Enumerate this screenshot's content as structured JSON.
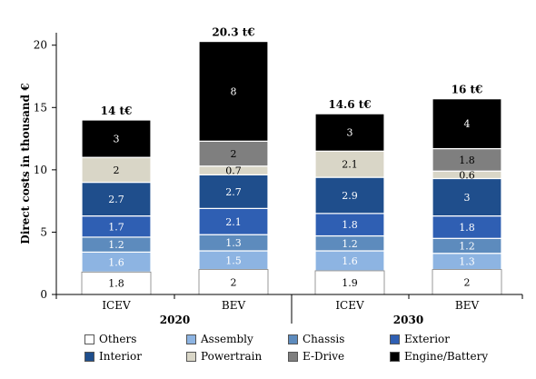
{
  "chart_data": {
    "type": "bar",
    "stacked": true,
    "categories": [
      "ICEV",
      "BEV",
      "ICEV",
      "BEV"
    ],
    "groups": [
      {
        "label": "2020",
        "categories": [
          0,
          1
        ]
      },
      {
        "label": "2030",
        "categories": [
          2,
          3
        ]
      }
    ],
    "ylabel": "Direct costs in thousand €",
    "ylim": [
      0,
      21
    ],
    "yticks": [
      0,
      5,
      10,
      15,
      20
    ],
    "grid": false,
    "legend_position": "bottom",
    "totals": [
      "14 t€",
      "20.3 t€",
      "14.6 t€",
      "16 t€"
    ],
    "series": [
      {
        "name": "Others",
        "color": "#ffffff",
        "label_color": "#000000",
        "values": [
          1.8,
          2,
          1.9,
          2
        ]
      },
      {
        "name": "Assembly",
        "color": "#8db4e2",
        "label_color": "#ffffff",
        "values": [
          1.6,
          1.5,
          1.6,
          1.3
        ]
      },
      {
        "name": "Chassis",
        "color": "#5d8bbd",
        "label_color": "#ffffff",
        "values": [
          1.2,
          1.3,
          1.2,
          1.2
        ]
      },
      {
        "name": "Exterior",
        "color": "#2f5fb3",
        "label_color": "#ffffff",
        "values": [
          1.7,
          2.1,
          1.8,
          1.8
        ]
      },
      {
        "name": "Interior",
        "color": "#1f4e8c",
        "label_color": "#ffffff",
        "values": [
          2.7,
          2.7,
          2.9,
          3
        ]
      },
      {
        "name": "Powertrain",
        "color": "#d9d6c7",
        "label_color": "#000000",
        "values": [
          2,
          0.7,
          2.1,
          0.6
        ]
      },
      {
        "name": "E-Drive",
        "color": "#7f7f7f",
        "label_color": "#000000",
        "values": [
          0,
          2,
          0,
          1.8
        ]
      },
      {
        "name": "Engine/Battery",
        "color": "#000000",
        "label_color": "#ffffff",
        "values": [
          3,
          8,
          3,
          4
        ]
      }
    ],
    "legend_order": [
      "Others",
      "Assembly",
      "Chassis",
      "Exterior",
      "Interior",
      "Powertrain",
      "E-Drive",
      "Engine/Battery"
    ]
  }
}
